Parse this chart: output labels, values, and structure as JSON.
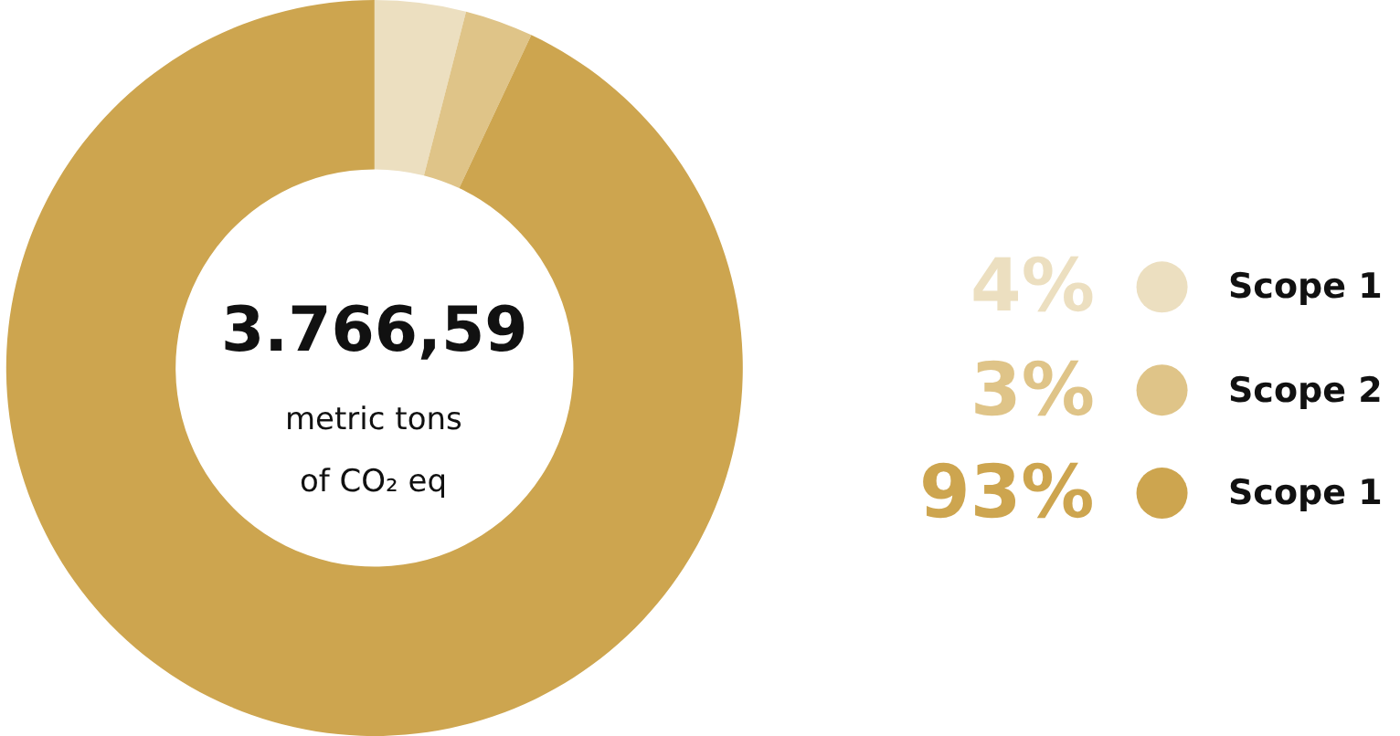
{
  "chart_data": {
    "type": "donut",
    "categories": [
      "Scope 1",
      "Scope 2",
      "Scope 1"
    ],
    "values": [
      4,
      3,
      93
    ],
    "colors": [
      "#ecdfc0",
      "#dfc488",
      "#cda54f"
    ],
    "value_labels": [
      "4%",
      "3%",
      "93%"
    ],
    "annotations": [
      "3.766,59",
      "metric tons",
      "of CO₂ eq"
    ],
    "legend": "right"
  }
}
